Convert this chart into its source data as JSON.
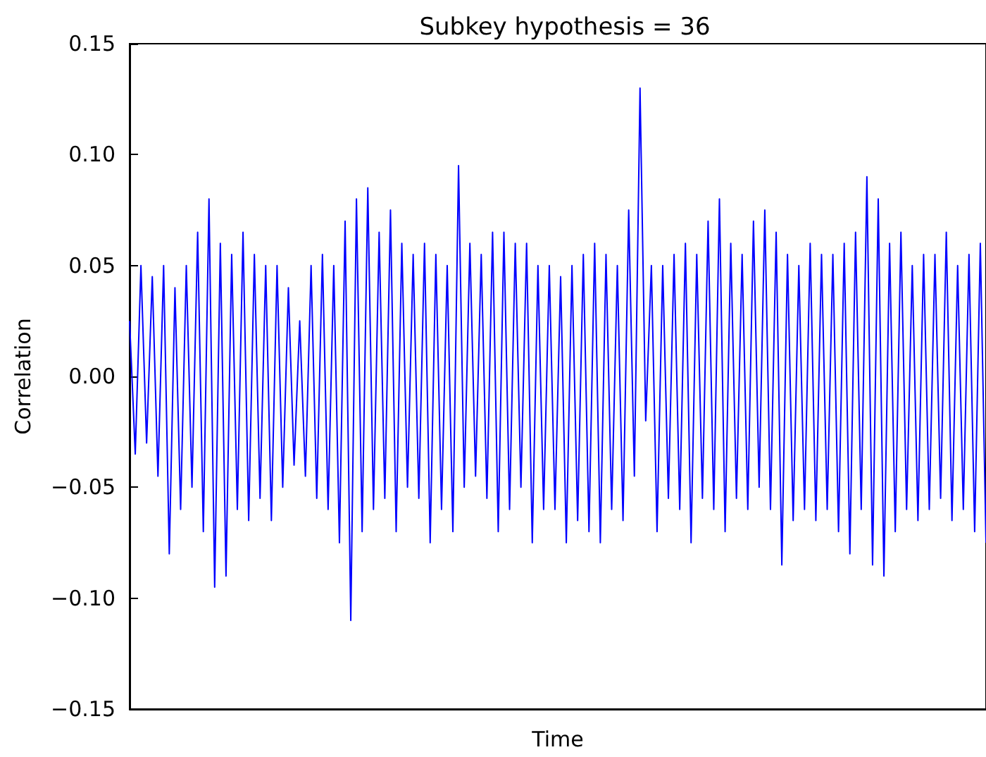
{
  "chart_data": {
    "type": "line",
    "title": "Subkey hypothesis = 36",
    "xlabel": "Time",
    "ylabel": "Correlation",
    "categories": [
      null,
      null,
      null,
      null,
      null,
      null,
      null,
      null,
      null,
      null,
      null,
      null,
      null,
      null,
      null,
      null,
      null,
      null,
      null,
      null,
      null,
      null,
      null,
      null,
      null,
      null,
      null,
      null,
      null,
      null,
      null,
      null,
      null,
      null,
      null,
      null,
      null,
      null,
      null,
      null,
      null,
      null,
      null,
      null,
      null,
      null,
      null,
      null,
      null,
      null,
      null,
      null,
      null,
      null,
      null,
      null,
      null,
      null,
      null,
      null,
      null,
      null,
      null,
      null,
      null,
      null,
      null,
      null,
      null,
      null,
      null,
      null,
      null,
      null,
      null,
      null,
      null,
      null,
      null,
      null,
      null,
      null,
      null,
      null,
      null,
      null,
      null,
      null,
      null,
      null,
      null,
      null,
      null,
      null,
      null,
      null,
      null,
      null,
      null,
      null,
      null,
      null,
      null,
      null,
      null,
      null,
      null,
      null,
      null,
      null,
      null,
      null,
      null,
      null,
      null,
      null,
      null,
      null,
      null,
      null,
      null,
      null,
      null,
      null,
      null,
      null,
      null,
      null,
      null,
      null,
      null,
      null,
      null,
      null,
      null,
      null,
      null,
      null,
      null,
      null,
      null,
      null,
      null,
      null,
      null,
      null,
      null,
      null,
      null,
      null,
      null,
      null
    ],
    "series": [
      {
        "color": "#0000ff",
        "values": [
          0.025,
          -0.035,
          0.05,
          -0.03,
          0.045,
          -0.045,
          0.05,
          -0.08,
          0.04,
          -0.06,
          0.05,
          -0.05,
          0.065,
          -0.07,
          0.08,
          -0.095,
          0.06,
          -0.09,
          0.055,
          -0.06,
          0.065,
          -0.065,
          0.055,
          -0.055,
          0.05,
          -0.065,
          0.05,
          -0.05,
          0.04,
          -0.04,
          0.025,
          -0.045,
          0.05,
          -0.055,
          0.055,
          -0.06,
          0.05,
          -0.075,
          0.07,
          -0.11,
          0.08,
          -0.07,
          0.085,
          -0.06,
          0.065,
          -0.055,
          0.075,
          -0.07,
          0.06,
          -0.05,
          0.055,
          -0.055,
          0.06,
          -0.075,
          0.055,
          -0.06,
          0.05,
          -0.07,
          0.095,
          -0.05,
          0.06,
          -0.045,
          0.055,
          -0.055,
          0.065,
          -0.07,
          0.065,
          -0.06,
          0.06,
          -0.05,
          0.06,
          -0.075,
          0.05,
          -0.06,
          0.05,
          -0.06,
          0.045,
          -0.075,
          0.05,
          -0.065,
          0.055,
          -0.07,
          0.06,
          -0.075,
          0.055,
          -0.06,
          0.05,
          -0.065,
          0.075,
          -0.045,
          0.13,
          -0.02,
          0.05,
          -0.07,
          0.05,
          -0.055,
          0.055,
          -0.06,
          0.06,
          -0.075,
          0.055,
          -0.055,
          0.07,
          -0.06,
          0.08,
          -0.07,
          0.06,
          -0.055,
          0.055,
          -0.06,
          0.07,
          -0.05,
          0.075,
          -0.06,
          0.065,
          -0.085,
          0.055,
          -0.065,
          0.05,
          -0.06,
          0.06,
          -0.065,
          0.055,
          -0.06,
          0.055,
          -0.07,
          0.06,
          -0.08,
          0.065,
          -0.06,
          0.09,
          -0.085,
          0.08,
          -0.09,
          0.06,
          -0.07,
          0.065,
          -0.06,
          0.05,
          -0.065,
          0.055,
          -0.06,
          0.055,
          -0.055,
          0.065,
          -0.065,
          0.05,
          -0.06,
          0.055,
          -0.07,
          0.06,
          -0.075
        ]
      }
    ],
    "ylim": [
      -0.15,
      0.15
    ],
    "yticks": [
      {
        "value": -0.15,
        "label": "−0.15"
      },
      {
        "value": -0.1,
        "label": "−0.10"
      },
      {
        "value": -0.05,
        "label": "−0.05"
      },
      {
        "value": 0,
        "label": "0.00"
      },
      {
        "value": 0.05,
        "label": "0.05"
      },
      {
        "value": 0.1,
        "label": "0.10"
      },
      {
        "value": 0.15,
        "label": "0.15"
      }
    ],
    "tick_labels": "y",
    "line_style": "solid"
  }
}
